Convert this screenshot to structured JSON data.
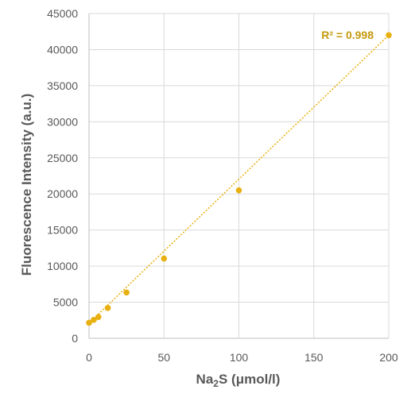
{
  "chart_data": {
    "type": "scatter",
    "title": "",
    "xlabel": {
      "main": "Na",
      "sub": "2",
      "rest": "S (μmol/l)"
    },
    "ylabel": "Fluorescence Intensity (a.u.)",
    "xlim": [
      0,
      200
    ],
    "ylim": [
      0,
      45000
    ],
    "x_ticks": [
      0,
      50,
      100,
      150,
      200
    ],
    "y_ticks": [
      0,
      5000,
      10000,
      15000,
      20000,
      25000,
      30000,
      35000,
      40000,
      45000
    ],
    "grid": true,
    "series": [
      {
        "color": "#E8B010",
        "points": [
          {
            "x": 0,
            "y": 2150
          },
          {
            "x": 3.125,
            "y": 2550
          },
          {
            "x": 6.25,
            "y": 2950
          },
          {
            "x": 12.5,
            "y": 4200
          },
          {
            "x": 25,
            "y": 6350
          },
          {
            "x": 50,
            "y": 11050
          },
          {
            "x": 100,
            "y": 20500
          },
          {
            "x": 200,
            "y": 42000
          }
        ]
      }
    ],
    "trendline": {
      "type": "linear",
      "style": "dotted",
      "color": "#E8B010",
      "slope": 199.5,
      "intercept": 2100,
      "label": "R² = 0.998",
      "label_color": "#C49A0E"
    }
  }
}
